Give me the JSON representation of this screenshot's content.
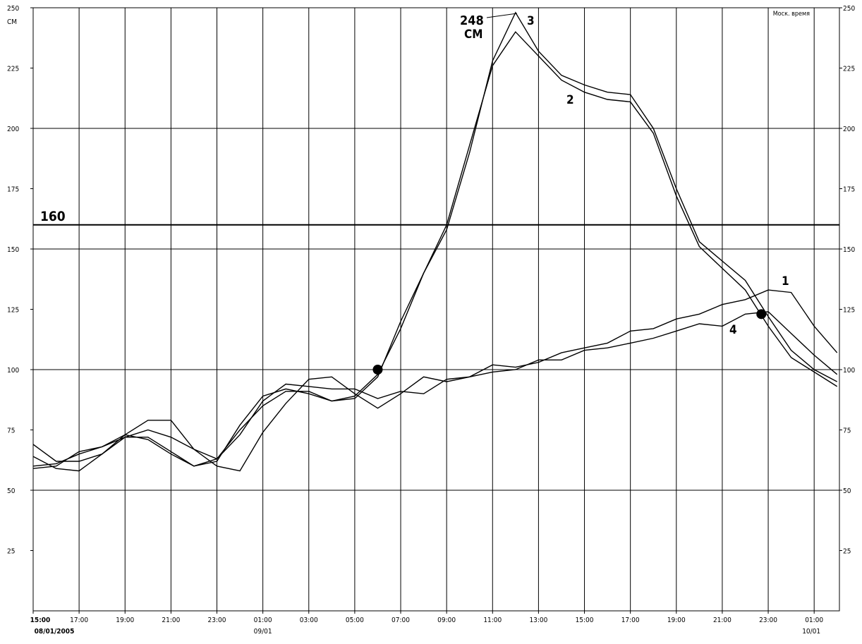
{
  "chart_data": {
    "type": "line",
    "x": [
      0,
      1,
      2,
      3,
      4,
      5,
      6,
      7,
      8,
      9,
      10,
      11,
      12,
      13,
      14,
      15,
      16,
      17,
      18,
      19,
      20,
      21,
      22,
      23,
      24,
      25,
      26,
      27,
      28,
      29,
      30,
      31,
      32,
      33,
      34,
      35
    ],
    "series": [
      {
        "name": "1",
        "color": "#000000",
        "values": [
          69,
          62,
          62,
          65,
          72,
          75,
          72,
          67,
          63,
          73,
          87,
          94,
          93,
          92,
          92,
          88,
          91,
          90,
          96,
          97,
          102,
          101,
          103,
          107,
          109,
          111,
          116,
          117,
          121,
          123,
          127,
          129,
          133,
          132,
          118,
          107
        ]
      },
      {
        "name": "2",
        "color": "#000000",
        "values": [
          60,
          61,
          65,
          68,
          73,
          71,
          65,
          60,
          62,
          77,
          89,
          92,
          90,
          87,
          89,
          98,
          117,
          140,
          160,
          193,
          226,
          240,
          230,
          220,
          215,
          212,
          211,
          198,
          172,
          151,
          142,
          133,
          118,
          105,
          99,
          93
        ]
      },
      {
        "name": "3",
        "color": "#000000",
        "values": [
          59,
          60,
          66,
          68,
          72,
          72,
          66,
          60,
          63,
          75,
          85,
          91,
          91,
          87,
          88,
          97,
          120,
          140,
          158,
          190,
          228,
          248,
          232,
          222,
          218,
          215,
          214,
          200,
          175,
          153,
          145,
          137,
          122,
          108,
          100,
          95
        ]
      },
      {
        "name": "4",
        "color": "#000000",
        "values": [
          64,
          59,
          58,
          65,
          73,
          79,
          79,
          67,
          60,
          58,
          74,
          86,
          96,
          97,
          90,
          84,
          90,
          97,
          95,
          97,
          99,
          100,
          104,
          104,
          108,
          109,
          111,
          113,
          116,
          119,
          118,
          123,
          124,
          115,
          106,
          98
        ]
      }
    ],
    "xlim": [
      0,
      35.1
    ],
    "xticks": [
      {
        "value": 0,
        "label": "15:00"
      },
      {
        "value": 2,
        "label": "17:00"
      },
      {
        "value": 4,
        "label": "19:00"
      },
      {
        "value": 6,
        "label": "21:00"
      },
      {
        "value": 8,
        "label": "23:00"
      },
      {
        "value": 10,
        "label": "01:00"
      },
      {
        "value": 12,
        "label": "03:00"
      },
      {
        "value": 14,
        "label": "05:00"
      },
      {
        "value": 16,
        "label": "07:00"
      },
      {
        "value": 18,
        "label": "09:00"
      },
      {
        "value": 20,
        "label": "11:00"
      },
      {
        "value": 22,
        "label": "13:00"
      },
      {
        "value": 24,
        "label": "15:00"
      },
      {
        "value": 26,
        "label": "17:00"
      },
      {
        "value": 28,
        "label": "19:00"
      },
      {
        "value": 30,
        "label": "21:00"
      },
      {
        "value": 32,
        "label": "23:00"
      },
      {
        "value": 34,
        "label": "01:00"
      }
    ],
    "xdates": [
      {
        "value": 0,
        "label": "08/01/2005"
      },
      {
        "value": 10,
        "label": "09/01"
      },
      {
        "value": 34,
        "label": "10/01"
      }
    ],
    "ylim": [
      0,
      250
    ],
    "yticks": [
      25,
      50,
      75,
      100,
      125,
      150,
      175,
      200,
      225,
      250
    ],
    "ygrid": [
      50,
      100,
      150,
      200,
      250
    ],
    "y_unit": "СМ",
    "threshold": 160,
    "peak_label": "248",
    "time_note": "Моск. время",
    "markers": [
      {
        "x": 15,
        "y": 100
      },
      {
        "x": 31.7,
        "y": 123
      }
    ]
  }
}
